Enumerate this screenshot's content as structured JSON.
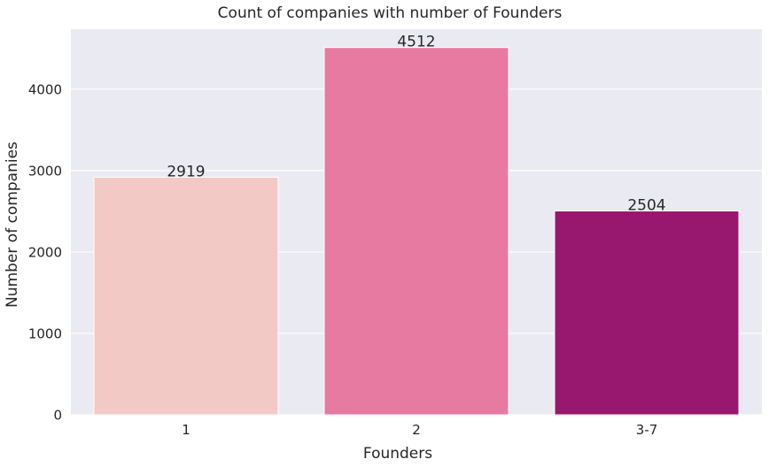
{
  "chart_data": {
    "type": "bar",
    "title": "Count of companies with number of Founders",
    "xlabel": "Founders",
    "ylabel": "Number of companies",
    "categories": [
      "1",
      "2",
      "3-7"
    ],
    "values": [
      2919,
      4512,
      2504
    ],
    "data_labels": [
      "2919",
      "4512",
      "2504"
    ],
    "colors": [
      "#f3c9c5",
      "#e77aa1",
      "#98176f"
    ],
    "ylim": [
      0,
      4737
    ],
    "yticks": [
      0,
      1000,
      2000,
      3000,
      4000
    ],
    "ytick_labels": [
      "0",
      "1000",
      "2000",
      "3000",
      "4000"
    ],
    "grid": true,
    "background": "#eaeaf2"
  }
}
